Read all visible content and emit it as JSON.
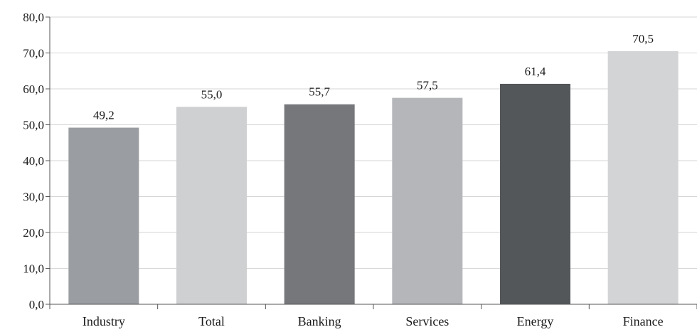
{
  "chart_data": {
    "type": "bar",
    "categories": [
      "Industry",
      "Total",
      "Banking",
      "Services",
      "Energy",
      "Finance"
    ],
    "values": [
      49.2,
      55.0,
      55.7,
      57.5,
      61.4,
      70.5
    ],
    "value_labels": [
      "49,2",
      "55,0",
      "55,7",
      "57,5",
      "61,4",
      "70,5"
    ],
    "bar_colors": [
      "#9a9da1",
      "#cfd0d2",
      "#76777b",
      "#b4b6b9",
      "#545759",
      "#d3d4d6"
    ],
    "ylim": [
      0,
      80
    ],
    "yticks": [
      0,
      10,
      20,
      30,
      40,
      50,
      60,
      70,
      80
    ],
    "ytick_labels": [
      "0,0",
      "10,0",
      "20,0",
      "30,0",
      "40,0",
      "50,0",
      "60,0",
      "70,0",
      "80,0"
    ],
    "grid": true,
    "legend": "none",
    "title": "",
    "xlabel": "",
    "ylabel": ""
  }
}
